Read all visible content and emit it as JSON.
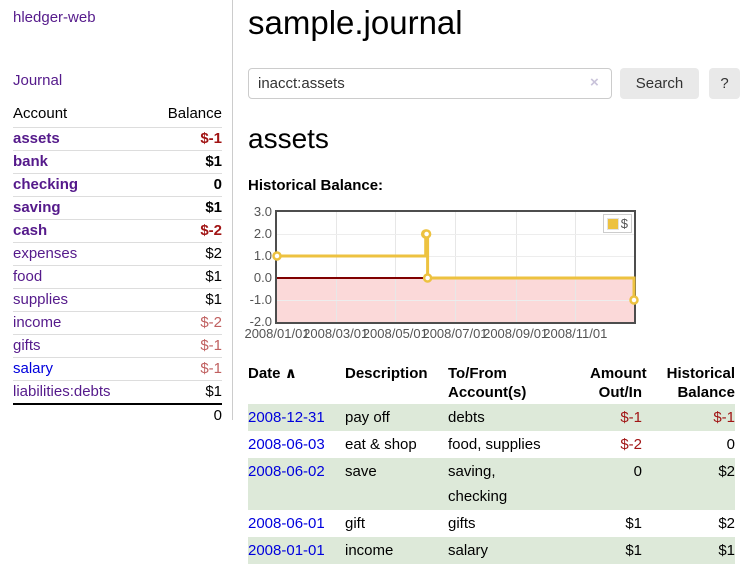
{
  "sidebar": {
    "app_title": "hledger-web",
    "journal_label": "Journal",
    "accounts_header": {
      "account": "Account",
      "balance": "Balance"
    },
    "accounts": [
      {
        "name": "assets",
        "depth": 1,
        "selected": true,
        "balance": "$-1",
        "balance_tone": "neg",
        "link_tone": "visited"
      },
      {
        "name": "bank",
        "depth": 2,
        "selected": true,
        "balance": "$1",
        "balance_tone": "",
        "link_tone": "visited"
      },
      {
        "name": "checking",
        "depth": 3,
        "selected": true,
        "balance": "0",
        "balance_tone": "",
        "link_tone": "visited"
      },
      {
        "name": "saving",
        "depth": 3,
        "selected": true,
        "balance": "$1",
        "balance_tone": "",
        "link_tone": "visited"
      },
      {
        "name": "cash",
        "depth": 2,
        "selected": true,
        "balance": "$-2",
        "balance_tone": "neg",
        "link_tone": "visited"
      },
      {
        "name": "expenses",
        "depth": 1,
        "selected": false,
        "balance": "$2",
        "balance_tone": "",
        "link_tone": "visited"
      },
      {
        "name": "food",
        "depth": 2,
        "selected": false,
        "balance": "$1",
        "balance_tone": "",
        "link_tone": "visited"
      },
      {
        "name": "supplies",
        "depth": 2,
        "selected": false,
        "balance": "$1",
        "balance_tone": "",
        "link_tone": "visited"
      },
      {
        "name": "income",
        "depth": 1,
        "selected": false,
        "balance": "$-2",
        "balance_tone": "soft-neg",
        "link_tone": "visited"
      },
      {
        "name": "gifts",
        "depth": 2,
        "selected": false,
        "balance": "$-1",
        "balance_tone": "soft-neg",
        "link_tone": "visited"
      },
      {
        "name": "salary",
        "depth": 2,
        "selected": false,
        "balance": "$-1",
        "balance_tone": "soft-neg",
        "link_tone": "unvisited"
      },
      {
        "name": "liabilities:debts",
        "depth": 1,
        "selected": false,
        "balance": "$1",
        "balance_tone": "",
        "link_tone": "visited"
      }
    ],
    "total": "0"
  },
  "header": {
    "title": "sample.journal"
  },
  "search": {
    "query": "inacct:assets",
    "clear_icon": "×",
    "button_label": "Search",
    "help_label": "?"
  },
  "account_page": {
    "title": "assets",
    "chart_label": "Historical Balance:"
  },
  "chart_data": {
    "type": "line",
    "step": true,
    "title": "Historical Balance:",
    "series": [
      {
        "name": "$",
        "color": "#edc240",
        "points": [
          [
            "2008-01-01",
            1
          ],
          [
            "2008-06-01",
            2
          ],
          [
            "2008-06-02",
            2
          ],
          [
            "2008-06-03",
            0
          ],
          [
            "2008-12-31",
            -1
          ]
        ]
      }
    ],
    "x_domain": [
      "2008-01-01",
      "2008-12-31"
    ],
    "x_tick_dates": [
      "2008-01-01",
      "2008-03-01",
      "2008-05-01",
      "2008-07-01",
      "2008-09-01",
      "2008-11-01"
    ],
    "x_tick_labels": [
      "2008/01/01",
      "2008/03/01",
      "2008/05/01",
      "2008/07/01",
      "2008/09/01",
      "2008/11/01"
    ],
    "y_tick_labels": [
      "3.0",
      "2.0",
      "1.0",
      "0.0",
      "-1.0",
      "-2.0"
    ],
    "ylim": [
      -2,
      3
    ],
    "grid": true,
    "legend": {
      "label": "$",
      "position": "top-right"
    },
    "negative_region_color": "#fbd9d9",
    "zero_line_color": "#800000"
  },
  "register": {
    "columns": {
      "date": "Date",
      "date_sort_icon": "∧",
      "description": "Description",
      "accounts_line1": "To/From",
      "accounts_line2": "Account(s)",
      "amount_line1": "Amount",
      "amount_line2": "Out/In",
      "balance_line1": "Historical",
      "balance_line2": "Balance"
    },
    "rows": [
      {
        "date": "2008-12-31",
        "description": "pay off",
        "account_lines": [
          "debts"
        ],
        "amount": "$-1",
        "balance": "$-1"
      },
      {
        "date": "2008-06-03",
        "description": "eat & shop",
        "account_lines": [
          "food, supplies"
        ],
        "amount": "$-2",
        "balance": "0"
      },
      {
        "date": "2008-06-02",
        "description": "save",
        "account_lines": [
          "saving,",
          "checking"
        ],
        "amount": "0",
        "balance": "$2"
      },
      {
        "date": "2008-06-01",
        "description": "gift",
        "account_lines": [
          "gifts"
        ],
        "amount": "$1",
        "balance": "$2"
      },
      {
        "date": "2008-01-01",
        "description": "income",
        "account_lines": [
          "salary"
        ],
        "amount": "$1",
        "balance": "$1"
      }
    ]
  },
  "colors": {
    "accent_purple": "#551a8b",
    "link_blue": "#0000dd",
    "negative_strong": "#a11414",
    "negative_soft": "#c06060",
    "row_highlight_green": "#dde9d9",
    "chart_series_yellow": "#edc240",
    "chart_negative_pink": "#fbd9d9",
    "chart_zero_line": "#800000"
  }
}
